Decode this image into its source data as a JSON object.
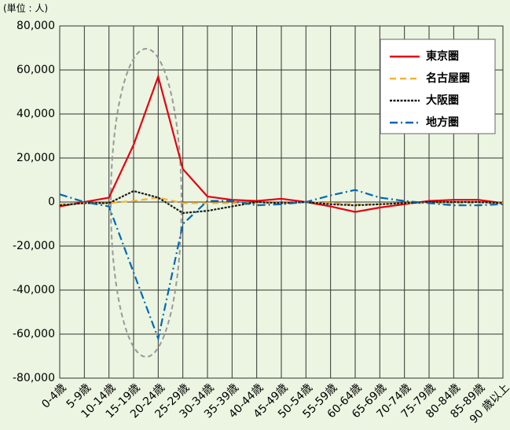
{
  "chart_data": {
    "type": "line",
    "unit_label": "(単位 : 人)",
    "categories": [
      "0-4歳",
      "5-9歳",
      "10-14歳",
      "15-19歳",
      "20-24歳",
      "25-29歳",
      "30-34歳",
      "35-39歳",
      "40-44歳",
      "45-49歳",
      "50-54歳",
      "55-59歳",
      "60-64歳",
      "65-69歳",
      "70-74歳",
      "75-79歳",
      "80-84歳",
      "85-89歳",
      "90 歳以上"
    ],
    "category_colors": [
      "#000",
      "#000",
      "#000",
      "#e60012",
      "#e60012",
      "#e60012",
      "#000",
      "#000",
      "#000",
      "#000",
      "#000",
      "#000",
      "#000",
      "#000",
      "#000",
      "#000",
      "#000",
      "#000",
      "#000"
    ],
    "series": [
      {
        "name": "東京圏",
        "color": "#e60012",
        "dash": "none",
        "values": [
          -2000,
          0,
          2000,
          26000,
          57000,
          15000,
          2500,
          1000,
          500,
          1500,
          0,
          -2000,
          -4500,
          -2500,
          -1000,
          500,
          1000,
          1000,
          -500
        ]
      },
      {
        "name": "名古屋圏",
        "color": "#f5b233",
        "dash": "8,5",
        "values": [
          -1000,
          -500,
          -500,
          500,
          2000,
          -500,
          -500,
          -500,
          -500,
          -500,
          0,
          -500,
          -1000,
          -1000,
          -500,
          -500,
          -500,
          -500,
          -500
        ]
      },
      {
        "name": "大阪圏",
        "color": "#1a1a1a",
        "dash": "3,1.5",
        "values": [
          -1500,
          -500,
          -500,
          5000,
          2000,
          -5000,
          -4000,
          -2000,
          0,
          -500,
          0,
          -1000,
          -1500,
          -1000,
          -500,
          0,
          0,
          0,
          -500
        ]
      },
      {
        "name": "地方圏",
        "color": "#0068b7",
        "dash": "10,4,2,4",
        "values": [
          3500,
          0,
          -2000,
          -32000,
          -62000,
          -10000,
          500,
          500,
          -1500,
          -1000,
          0,
          3000,
          5500,
          2000,
          500,
          -500,
          -1500,
          -1500,
          -1000
        ]
      }
    ],
    "ylim": [
      -80000,
      80000
    ],
    "yticks": [
      {
        "value": -80000,
        "label": "-80,000"
      },
      {
        "value": -60000,
        "label": "-60,000"
      },
      {
        "value": -40000,
        "label": "-40,000"
      },
      {
        "value": -20000,
        "label": "-20,000"
      },
      0,
      {
        "value": 20000,
        "label": "20,000"
      },
      {
        "value": 40000,
        "label": "40,000"
      },
      {
        "value": 60000,
        "label": "60,000"
      },
      {
        "value": 80000,
        "label": "80,000"
      }
    ],
    "grid": true,
    "legend": "top-right"
  }
}
